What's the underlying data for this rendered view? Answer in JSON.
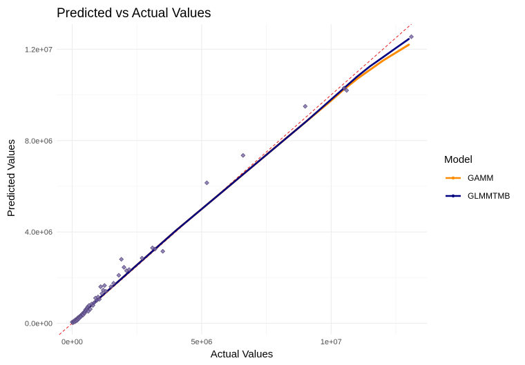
{
  "chart_data": {
    "type": "scatter",
    "title": "Predicted vs Actual Values",
    "xlabel": "Actual Values",
    "ylabel": "Predicted Values",
    "xlim": [
      -600000,
      13700000
    ],
    "ylim": [
      -500000,
      13100000
    ],
    "x_ticks": [
      {
        "value": 0,
        "label": "0e+00"
      },
      {
        "value": 5000000,
        "label": "5e+06"
      },
      {
        "value": 10000000,
        "label": "1e+07"
      }
    ],
    "y_ticks": [
      {
        "value": 0,
        "label": "0.0e+00"
      },
      {
        "value": 4000000,
        "label": "4.0e+06"
      },
      {
        "value": 8000000,
        "label": "8.0e+06"
      },
      {
        "value": 12000000,
        "label": "1.2e+07"
      }
    ],
    "grid": true,
    "reference_line": {
      "slope": 1,
      "intercept": 0,
      "color": "#e41a1c",
      "style": "dashed"
    },
    "legend": {
      "title": "Model",
      "position": "right"
    },
    "series": [
      {
        "name": "GAMM",
        "color": "#ff8c00",
        "points": [
          [
            0,
            0
          ],
          [
            1000000,
            1050000
          ],
          [
            2000000,
            2050000
          ],
          [
            3000000,
            3050000
          ],
          [
            4000000,
            4050000
          ],
          [
            5000000,
            5000000
          ],
          [
            6000000,
            5950000
          ],
          [
            7000000,
            6900000
          ],
          [
            8000000,
            7850000
          ],
          [
            9000000,
            8800000
          ],
          [
            10000000,
            9750000
          ],
          [
            10500000,
            10250000
          ],
          [
            11000000,
            10700000
          ],
          [
            11500000,
            11100000
          ],
          [
            12000000,
            11500000
          ],
          [
            12500000,
            11850000
          ],
          [
            13000000,
            12200000
          ]
        ]
      },
      {
        "name": "GLMMTMB",
        "color": "#000080",
        "points": [
          [
            0,
            0
          ],
          [
            1000000,
            1050000
          ],
          [
            2000000,
            2050000
          ],
          [
            3000000,
            3050000
          ],
          [
            4000000,
            4050000
          ],
          [
            5000000,
            5000000
          ],
          [
            6000000,
            5950000
          ],
          [
            7000000,
            6900000
          ],
          [
            8000000,
            7850000
          ],
          [
            9000000,
            8800000
          ],
          [
            10000000,
            9800000
          ],
          [
            10500000,
            10300000
          ],
          [
            11000000,
            10800000
          ],
          [
            11500000,
            11250000
          ],
          [
            12000000,
            11650000
          ],
          [
            12500000,
            12050000
          ],
          [
            13000000,
            12450000
          ]
        ]
      }
    ],
    "observed_points": {
      "color": "#7b68a6",
      "points": [
        [
          0,
          50000
        ],
        [
          30000,
          20000
        ],
        [
          60000,
          90000
        ],
        [
          100000,
          60000
        ],
        [
          120000,
          150000
        ],
        [
          150000,
          100000
        ],
        [
          180000,
          180000
        ],
        [
          200000,
          130000
        ],
        [
          220000,
          240000
        ],
        [
          250000,
          190000
        ],
        [
          270000,
          280000
        ],
        [
          300000,
          250000
        ],
        [
          320000,
          330000
        ],
        [
          350000,
          300000
        ],
        [
          380000,
          380000
        ],
        [
          400000,
          420000
        ],
        [
          420000,
          360000
        ],
        [
          450000,
          480000
        ],
        [
          480000,
          440000
        ],
        [
          500000,
          520000
        ],
        [
          520000,
          600000
        ],
        [
          550000,
          560000
        ],
        [
          580000,
          650000
        ],
        [
          600000,
          720000
        ],
        [
          620000,
          520000
        ],
        [
          650000,
          780000
        ],
        [
          700000,
          620000
        ],
        [
          750000,
          840000
        ],
        [
          800000,
          780000
        ],
        [
          850000,
          900000
        ],
        [
          900000,
          1100000
        ],
        [
          950000,
          1000000
        ],
        [
          1000000,
          1150000
        ],
        [
          1050000,
          1050000
        ],
        [
          1100000,
          1600000
        ],
        [
          1150000,
          1300000
        ],
        [
          1200000,
          1450000
        ],
        [
          1250000,
          1650000
        ],
        [
          1300000,
          1400000
        ],
        [
          1500000,
          1600000
        ],
        [
          1600000,
          1750000
        ],
        [
          1800000,
          2100000
        ],
        [
          1900000,
          2800000
        ],
        [
          2000000,
          2450000
        ],
        [
          2100000,
          2300000
        ],
        [
          2200000,
          2350000
        ],
        [
          2700000,
          2850000
        ],
        [
          3100000,
          3300000
        ],
        [
          3200000,
          3250000
        ],
        [
          3500000,
          3150000
        ],
        [
          5200000,
          6150000
        ],
        [
          6600000,
          7350000
        ],
        [
          9000000,
          9500000
        ],
        [
          10500000,
          10300000
        ],
        [
          10600000,
          10200000
        ],
        [
          13100000,
          12550000
        ]
      ]
    }
  }
}
